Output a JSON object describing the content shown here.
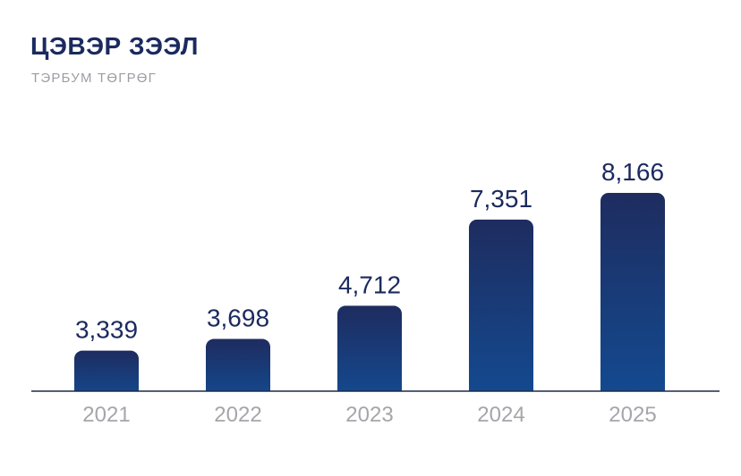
{
  "chart_data": {
    "type": "bar",
    "title": "ЦЭВЭР ЗЭЭЛ",
    "subtitle": "ТЭРБУМ ТӨГРӨГ",
    "categories": [
      "2021",
      "2022",
      "2023",
      "2024",
      "2025"
    ],
    "values": [
      3339,
      3698,
      4712,
      7351,
      8166
    ],
    "value_labels": [
      "3,339",
      "3,698",
      "4,712",
      "7,351",
      "8,166"
    ],
    "xlabel": "",
    "ylabel": "",
    "ylim": [
      2100,
      8166
    ],
    "grid": false,
    "legend": "none"
  },
  "colors": {
    "bar_top": "#1e2c5f",
    "bar_bottom": "#134b92",
    "title": "#1b2a5e",
    "subtitle": "#9c9ea3",
    "axis": "#1b2a4a",
    "category_label": "#a4a6aa"
  }
}
